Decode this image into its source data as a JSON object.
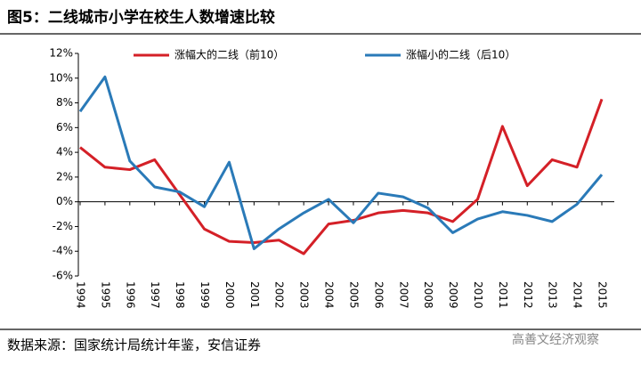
{
  "chart_data": {
    "type": "line",
    "title": "图5：二线城市小学在校生人数增速比较",
    "source": "数据来源：国家统计局统计年鉴，安信证券",
    "watermark": "高善文经济观察",
    "categories": [
      "1994",
      "1995",
      "1996",
      "1997",
      "1998",
      "1999",
      "2000",
      "2001",
      "2002",
      "2003",
      "2004",
      "2005",
      "2006",
      "2007",
      "2008",
      "2009",
      "2010",
      "2011",
      "2012",
      "2013",
      "2014",
      "2015"
    ],
    "series": [
      {
        "name": "涨幅大的二线（前10）",
        "color": "#d42027",
        "values": [
          4.4,
          2.8,
          2.6,
          3.4,
          0.6,
          -2.2,
          -3.2,
          -3.3,
          -3.1,
          -4.2,
          -1.8,
          -1.5,
          -0.9,
          -0.7,
          -0.9,
          -1.6,
          0.2,
          6.1,
          1.3,
          3.4,
          2.8,
          8.3
        ]
      },
      {
        "name": "涨幅小的二线（后10）",
        "color": "#2a7ab8",
        "values": [
          7.3,
          10.1,
          3.3,
          1.2,
          0.8,
          -0.4,
          3.2,
          -3.8,
          -2.2,
          -0.9,
          0.2,
          -1.7,
          0.7,
          0.4,
          -0.5,
          -2.5,
          -1.4,
          -0.8,
          -1.1,
          -1.6,
          -0.2,
          2.2
        ]
      }
    ],
    "ylim": [
      -6,
      12
    ],
    "yticks": [
      {
        "value": -6,
        "label": "-6%"
      },
      {
        "value": -4,
        "label": "-4%"
      },
      {
        "value": -2,
        "label": "-2%"
      },
      {
        "value": 0,
        "label": "0%"
      },
      {
        "value": 2,
        "label": "2%"
      },
      {
        "value": 4,
        "label": "4%"
      },
      {
        "value": 6,
        "label": "6%"
      },
      {
        "value": 8,
        "label": "8%"
      },
      {
        "value": 10,
        "label": "10%"
      },
      {
        "value": 12,
        "label": "12%"
      }
    ],
    "legend": "top"
  }
}
